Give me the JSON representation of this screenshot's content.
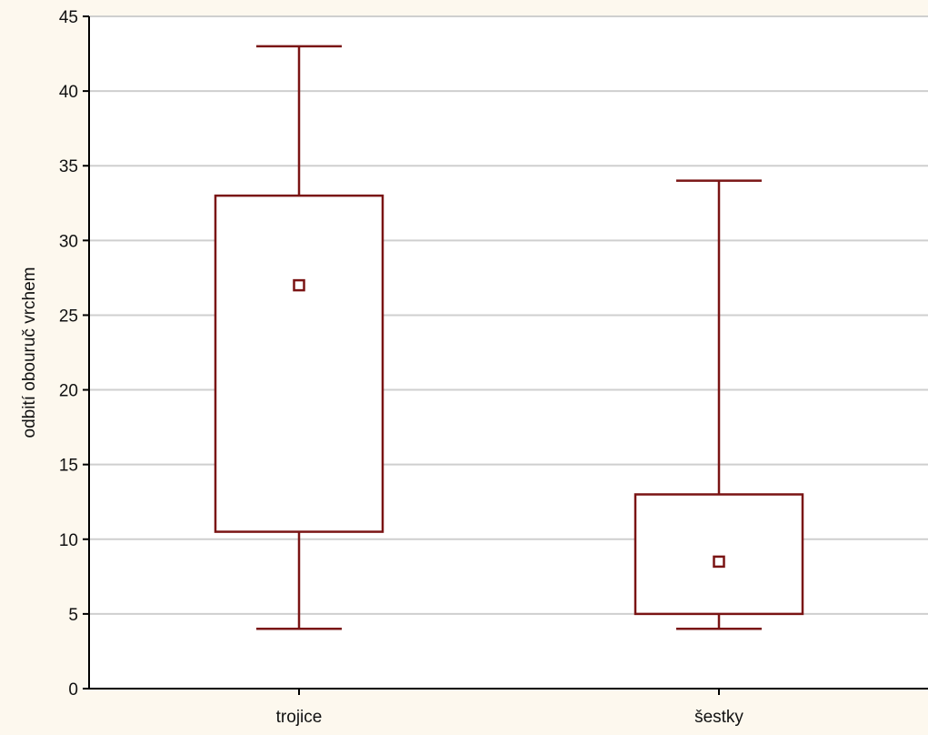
{
  "chart_data": {
    "type": "box",
    "title": "",
    "xlabel": "",
    "ylabel": "odbití obouruč vrchem",
    "ylim": [
      0,
      45
    ],
    "y_ticks": [
      0,
      5,
      10,
      15,
      20,
      25,
      30,
      35,
      40,
      45
    ],
    "y_tick_labels": [
      "0",
      "5",
      "10",
      "15",
      "20",
      "25",
      "30",
      "35",
      "40",
      "45"
    ],
    "grid": true,
    "categories": [
      "trojice",
      "šestky"
    ],
    "boxes": [
      {
        "category": "trojice",
        "whisker_low": 4,
        "box_low": 10.5,
        "box_high": 33,
        "whisker_high": 43,
        "center": 27
      },
      {
        "category": "šestky",
        "whisker_low": 4,
        "box_low": 5,
        "box_high": 13,
        "whisker_high": 34,
        "center": 8.5
      }
    ],
    "colors": {
      "box": "#7a1414",
      "grid": "#cfcfcf",
      "axis": "#000000",
      "plot_background": "#ffffff",
      "page_background": "#fdf8ee"
    }
  }
}
